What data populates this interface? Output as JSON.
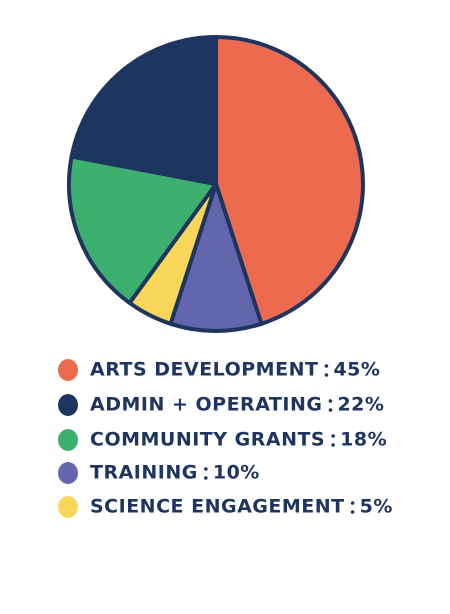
{
  "chart_data": {
    "type": "pie",
    "categories": [
      "ARTS DEVELOPMENT",
      "TRAINING",
      "SCIENCE ENGAGEMENT",
      "COMMUNITY GRANTS",
      "ADMIN + OPERATING"
    ],
    "values": [
      45,
      10,
      5,
      18,
      22
    ],
    "value_labels": [
      "45%",
      "10%",
      "5%",
      "18%",
      "22%"
    ],
    "colors": [
      "#ec6b4e",
      "#6466ad",
      "#f8d65a",
      "#3daf6f",
      "#1e3560"
    ]
  }
}
